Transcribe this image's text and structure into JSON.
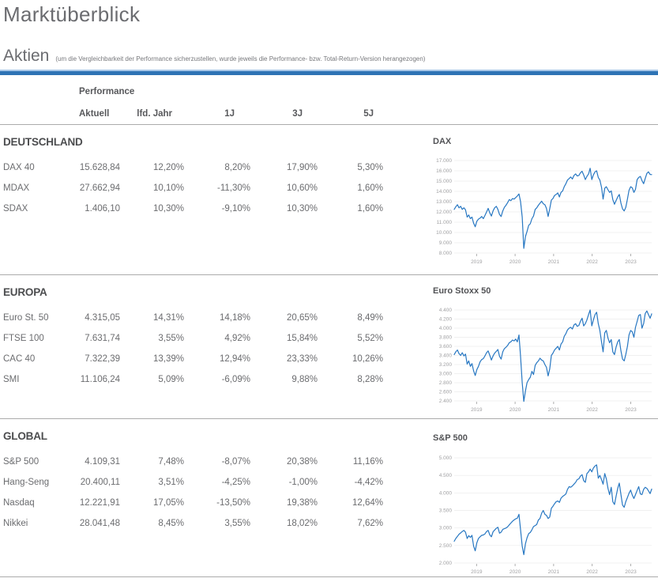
{
  "page": {
    "title": "Marktüberblick"
  },
  "aktien": {
    "title": "Aktien",
    "note": "(um die Vergleichbarkeit der Performance sicherzustellen, wurde jeweils die Performance- bzw. Total-Return-Version herangezogen)"
  },
  "colors": {
    "accent_blue": "#2e73b5",
    "accent_blue_light": "#a9c8e8",
    "chart_line": "#2777c2",
    "gridline": "#ebebeb",
    "tick_text": "#a1a1a3",
    "separator": "#ababab"
  },
  "table": {
    "group_label": "Performance",
    "columns": [
      "Aktuell",
      "lfd. Jahr",
      "1J",
      "3J",
      "5J"
    ],
    "sections": [
      {
        "name": "DEUTSCHLAND",
        "rows": [
          {
            "label": "DAX 40",
            "values": [
              "15.628,84",
              "12,20%",
              "8,20%",
              "17,90%",
              "5,30%"
            ]
          },
          {
            "label": "MDAX",
            "values": [
              "27.662,94",
              "10,10%",
              "-11,30%",
              "10,60%",
              "1,60%"
            ]
          },
          {
            "label": "SDAX",
            "values": [
              "1.406,10",
              "10,30%",
              "-9,10%",
              "10,30%",
              "1,60%"
            ]
          }
        ]
      },
      {
        "name": "EUROPA",
        "rows": [
          {
            "label": "Euro St. 50",
            "values": [
              "4.315,05",
              "14,31%",
              "14,18%",
              "20,65%",
              "8,49%"
            ]
          },
          {
            "label": "FTSE 100",
            "values": [
              "7.631,74",
              "3,55%",
              "4,92%",
              "15,84%",
              "5,52%"
            ]
          },
          {
            "label": "CAC 40",
            "values": [
              "7.322,39",
              "13,39%",
              "12,94%",
              "23,33%",
              "10,26%"
            ]
          },
          {
            "label": "SMI",
            "values": [
              "11.106,24",
              "5,09%",
              "-6,09%",
              "9,88%",
              "8,28%"
            ]
          }
        ]
      },
      {
        "name": "GLOBAL",
        "rows": [
          {
            "label": "S&P 500",
            "values": [
              "4.109,31",
              "7,48%",
              "-8,07%",
              "20,38%",
              "11,16%"
            ]
          },
          {
            "label": "Hang-Seng",
            "values": [
              "20.400,11",
              "3,51%",
              "-4,25%",
              "-1,00%",
              "-4,42%"
            ]
          },
          {
            "label": "Nasdaq",
            "values": [
              "12.221,91",
              "17,05%",
              "-13,50%",
              "19,38%",
              "12,64%"
            ]
          },
          {
            "label": "Nikkei",
            "values": [
              "28.041,48",
              "8,45%",
              "3,55%",
              "18,02%",
              "7,62%"
            ]
          }
        ]
      }
    ]
  },
  "chart_data": [
    {
      "type": "line",
      "title": "DAX",
      "x_start": 2018.42,
      "x_step": 0.042,
      "x_ticks": [
        2019,
        2020,
        2021,
        2022,
        2023
      ],
      "y_min": 8000,
      "y_max": 17000,
      "y_tick_step": 1000,
      "y_tick_labels": [
        "17.000",
        "16.000",
        "15.000",
        "14.000",
        "13.000",
        "12.000",
        "11.000",
        "10.000",
        "9.000",
        "8.000"
      ],
      "values": [
        12250,
        12500,
        12700,
        12400,
        12550,
        12250,
        12400,
        12200,
        11500,
        11700,
        11350,
        11500,
        10900,
        10550,
        11100,
        11300,
        11400,
        11550,
        11350,
        11650,
        12000,
        12350,
        11900,
        11600,
        12100,
        12400,
        12550,
        12250,
        11750,
        11550,
        12100,
        12450,
        12650,
        12900,
        13200,
        13100,
        13300,
        13250,
        13400,
        13550,
        13750,
        13000,
        11500,
        8450,
        9600,
        10100,
        10700,
        10850,
        11350,
        11600,
        12250,
        12400,
        12650,
        12850,
        13050,
        12800,
        12700,
        12350,
        11550,
        12300,
        13150,
        13300,
        13600,
        13700,
        13850,
        13450,
        13900,
        14050,
        14450,
        14750,
        15100,
        15250,
        15400,
        15200,
        15550,
        15700,
        15500,
        15550,
        15800,
        15950,
        15600,
        15150,
        15450,
        15700,
        16250,
        15150,
        15600,
        15900,
        16000,
        15350,
        15100,
        14400,
        13250,
        14300,
        14450,
        14150,
        13900,
        14050,
        13200,
        12750,
        13100,
        13450,
        13700,
        12850,
        12300,
        12100,
        12450,
        13250,
        14100,
        14450,
        14350,
        13900,
        14200,
        15150,
        15350,
        15450,
        15050,
        14750,
        15250,
        15750,
        15900,
        15650,
        15630
      ]
    },
    {
      "type": "line",
      "title": "Euro Stoxx 50",
      "x_start": 2018.42,
      "x_step": 0.042,
      "x_ticks": [
        2019,
        2020,
        2021,
        2022,
        2023
      ],
      "y_min": 2400,
      "y_max": 4400,
      "y_tick_step": 200,
      "y_tick_labels": [
        "4.400",
        "4.200",
        "4.000",
        "3.800",
        "3.600",
        "3.400",
        "3.200",
        "3.000",
        "2.800",
        "2.600",
        "2.400"
      ],
      "values": [
        3420,
        3480,
        3520,
        3440,
        3400,
        3460,
        3390,
        3430,
        3210,
        3280,
        3160,
        3220,
        3060,
        2960,
        3090,
        3160,
        3260,
        3310,
        3330,
        3390,
        3460,
        3500,
        3400,
        3300,
        3390,
        3450,
        3490,
        3530,
        3380,
        3320,
        3480,
        3550,
        3580,
        3620,
        3680,
        3700,
        3740,
        3720,
        3760,
        3700,
        3850,
        3380,
        2800,
        2390,
        2620,
        2800,
        2870,
        2920,
        3050,
        2980,
        3180,
        3240,
        3280,
        3340,
        3300,
        3280,
        3200,
        3140,
        2950,
        3100,
        3400,
        3450,
        3520,
        3560,
        3600,
        3520,
        3650,
        3700,
        3820,
        3880,
        3960,
        4000,
        4020,
        3980,
        4070,
        4100,
        4040,
        4060,
        4150,
        4220,
        4050,
        4100,
        4180,
        4300,
        4400,
        4050,
        4180,
        4300,
        4350,
        4100,
        3950,
        3700,
        3480,
        3900,
        3950,
        3780,
        3680,
        3750,
        3480,
        3420,
        3580,
        3700,
        3750,
        3500,
        3320,
        3280,
        3420,
        3600,
        3850,
        3950,
        3920,
        3800,
        4020,
        4150,
        4280,
        4300,
        4000,
        4100,
        4320,
        4380,
        4300,
        4220,
        4315
      ]
    },
    {
      "type": "line",
      "title": "S&P 500",
      "x_start": 2018.42,
      "x_step": 0.042,
      "x_ticks": [
        2019,
        2020,
        2021,
        2022,
        2023
      ],
      "y_min": 2000,
      "y_max": 5000,
      "y_tick_step": 500,
      "y_tick_labels": [
        "5.000",
        "4.500",
        "4.000",
        "3.500",
        "3.000",
        "2.500",
        "2.000"
      ],
      "values": [
        2620,
        2700,
        2760,
        2820,
        2860,
        2900,
        2930,
        2880,
        2700,
        2780,
        2730,
        2790,
        2480,
        2350,
        2580,
        2700,
        2750,
        2790,
        2800,
        2830,
        2900,
        2930,
        2800,
        2750,
        2890,
        2940,
        2990,
        3020,
        2850,
        2880,
        2960,
        2980,
        3000,
        3030,
        3090,
        3140,
        3190,
        3230,
        3260,
        3280,
        3390,
        2950,
        2480,
        2240,
        2550,
        2720,
        2840,
        2870,
        2950,
        3040,
        3070,
        3100,
        3230,
        3270,
        3420,
        3500,
        3390,
        3360,
        3270,
        3310,
        3560,
        3620,
        3690,
        3750,
        3770,
        3730,
        3850,
        3900,
        3930,
        3970,
        4100,
        4180,
        4160,
        4200,
        4250,
        4300,
        4380,
        4400,
        4480,
        4520,
        4350,
        4300,
        4550,
        4600,
        4680,
        4600,
        4710,
        4770,
        4800,
        4420,
        4500,
        4380,
        4250,
        4550,
        4400,
        4130,
        3950,
        4160,
        3750,
        3670,
        3900,
        4130,
        4280,
        3950,
        3650,
        3590,
        3750,
        3870,
        3990,
        4080,
        3940,
        3840,
        3950,
        4070,
        4180,
        3970,
        3950,
        4100,
        4160,
        4130,
        4060,
        3980,
        4109
      ]
    }
  ]
}
